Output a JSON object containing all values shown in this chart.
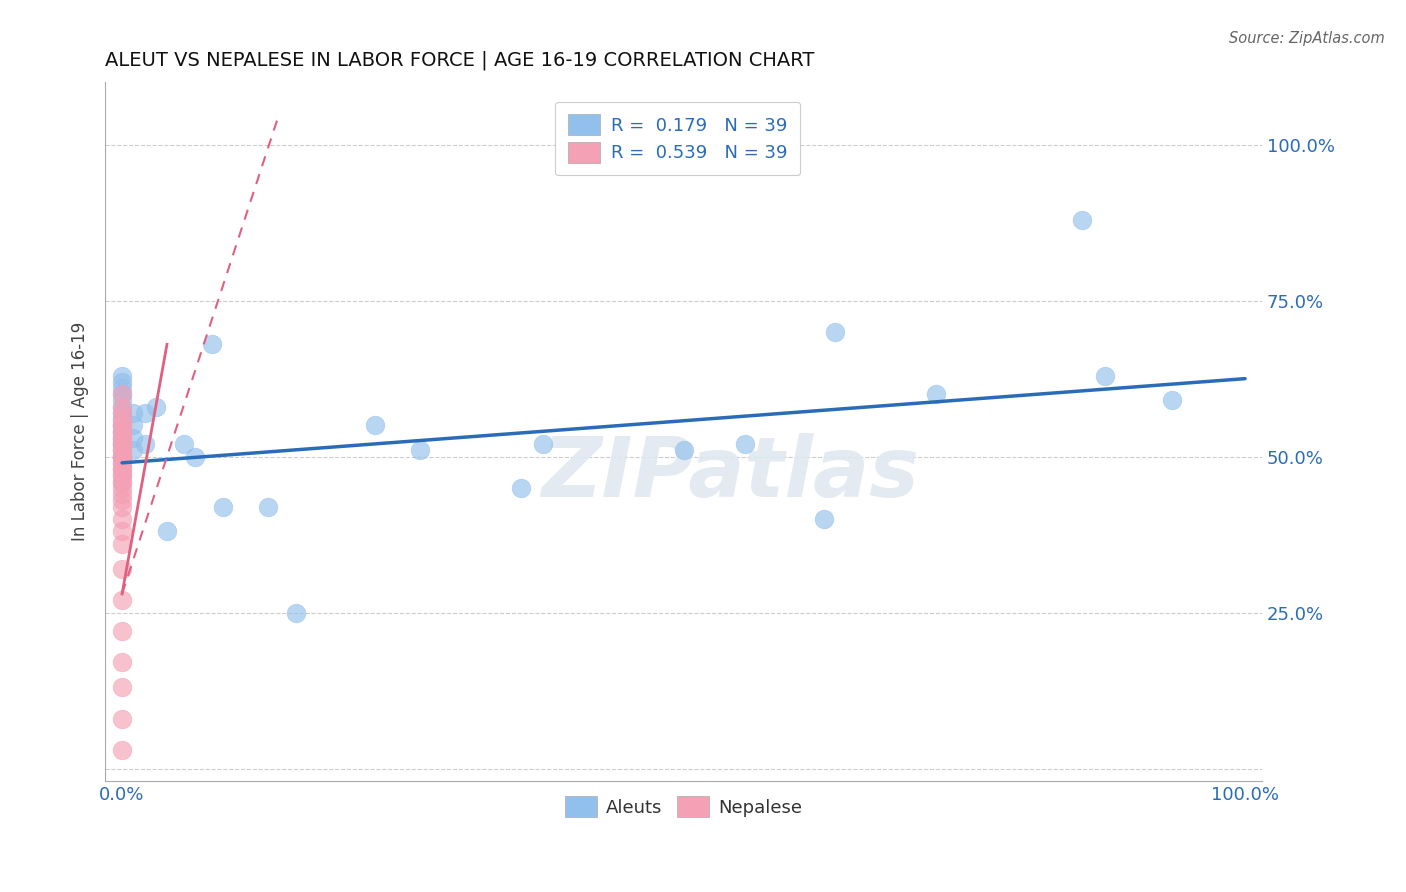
{
  "title": "ALEUT VS NEPALESE IN LABOR FORCE | AGE 16-19 CORRELATION CHART",
  "source": "Source: ZipAtlas.com",
  "ylabel": "In Labor Force | Age 16-19",
  "aleut_color": "#92C0EC",
  "nepalese_color": "#F4A0B5",
  "aleut_line_color": "#2B6CB8",
  "nepalese_line_color": "#E06080",
  "watermark": "ZIPatlas",
  "aleut_x": [
    0.0,
    0.0,
    0.0,
    0.0,
    0.0,
    0.0,
    0.0,
    0.0,
    0.0,
    0.0,
    0.0,
    0.0,
    0.0,
    0.01,
    0.01,
    0.01,
    0.01,
    0.02,
    0.02,
    0.03,
    0.04,
    0.055,
    0.065,
    0.08,
    0.09,
    0.13,
    0.155,
    0.225,
    0.265,
    0.355,
    0.375,
    0.5,
    0.555,
    0.625,
    0.635,
    0.725,
    0.855,
    0.875,
    0.935
  ],
  "aleut_y": [
    0.5,
    0.52,
    0.53,
    0.54,
    0.55,
    0.56,
    0.57,
    0.58,
    0.59,
    0.6,
    0.61,
    0.62,
    0.63,
    0.51,
    0.53,
    0.55,
    0.57,
    0.52,
    0.57,
    0.58,
    0.38,
    0.52,
    0.5,
    0.68,
    0.42,
    0.42,
    0.25,
    0.55,
    0.51,
    0.45,
    0.52,
    0.51,
    0.52,
    0.4,
    0.7,
    0.6,
    0.88,
    0.63,
    0.59
  ],
  "nepalese_x": [
    0.0,
    0.0,
    0.0,
    0.0,
    0.0,
    0.0,
    0.0,
    0.0,
    0.0,
    0.0,
    0.0,
    0.0,
    0.0,
    0.0,
    0.0,
    0.0,
    0.0,
    0.0,
    0.0,
    0.0,
    0.0,
    0.0,
    0.0,
    0.0,
    0.0,
    0.0,
    0.0,
    0.0,
    0.0,
    0.0,
    0.0,
    0.0,
    0.0,
    0.0,
    0.0,
    0.0,
    0.0,
    0.0,
    0.0
  ],
  "nepalese_y": [
    0.03,
    0.08,
    0.13,
    0.17,
    0.22,
    0.27,
    0.32,
    0.36,
    0.38,
    0.4,
    0.42,
    0.43,
    0.44,
    0.45,
    0.46,
    0.46,
    0.47,
    0.47,
    0.48,
    0.48,
    0.49,
    0.49,
    0.5,
    0.5,
    0.5,
    0.51,
    0.51,
    0.52,
    0.52,
    0.53,
    0.53,
    0.54,
    0.54,
    0.55,
    0.55,
    0.56,
    0.57,
    0.58,
    0.6
  ],
  "aleut_trend": [
    0.0,
    1.0,
    0.49,
    0.625
  ],
  "nepalese_trend": [
    0.0,
    0.04,
    0.28,
    0.68
  ],
  "nepalese_dashed_extension": [
    0.0,
    0.14,
    0.28,
    1.05
  ],
  "grid_color": "#CCCCCC",
  "background_color": "#FFFFFF",
  "xlim": [
    -0.015,
    1.015
  ],
  "ylim": [
    -0.02,
    1.1
  ],
  "legend_R_aleut": "R = ",
  "legend_R_aleut_val": "0.179",
  "legend_N_aleut": "N = ",
  "legend_N_aleut_val": "39",
  "legend_R_nepalese": "R = ",
  "legend_R_nepalese_val": "0.539",
  "legend_N_nepalese": "N = ",
  "legend_N_nepalese_val": "39"
}
